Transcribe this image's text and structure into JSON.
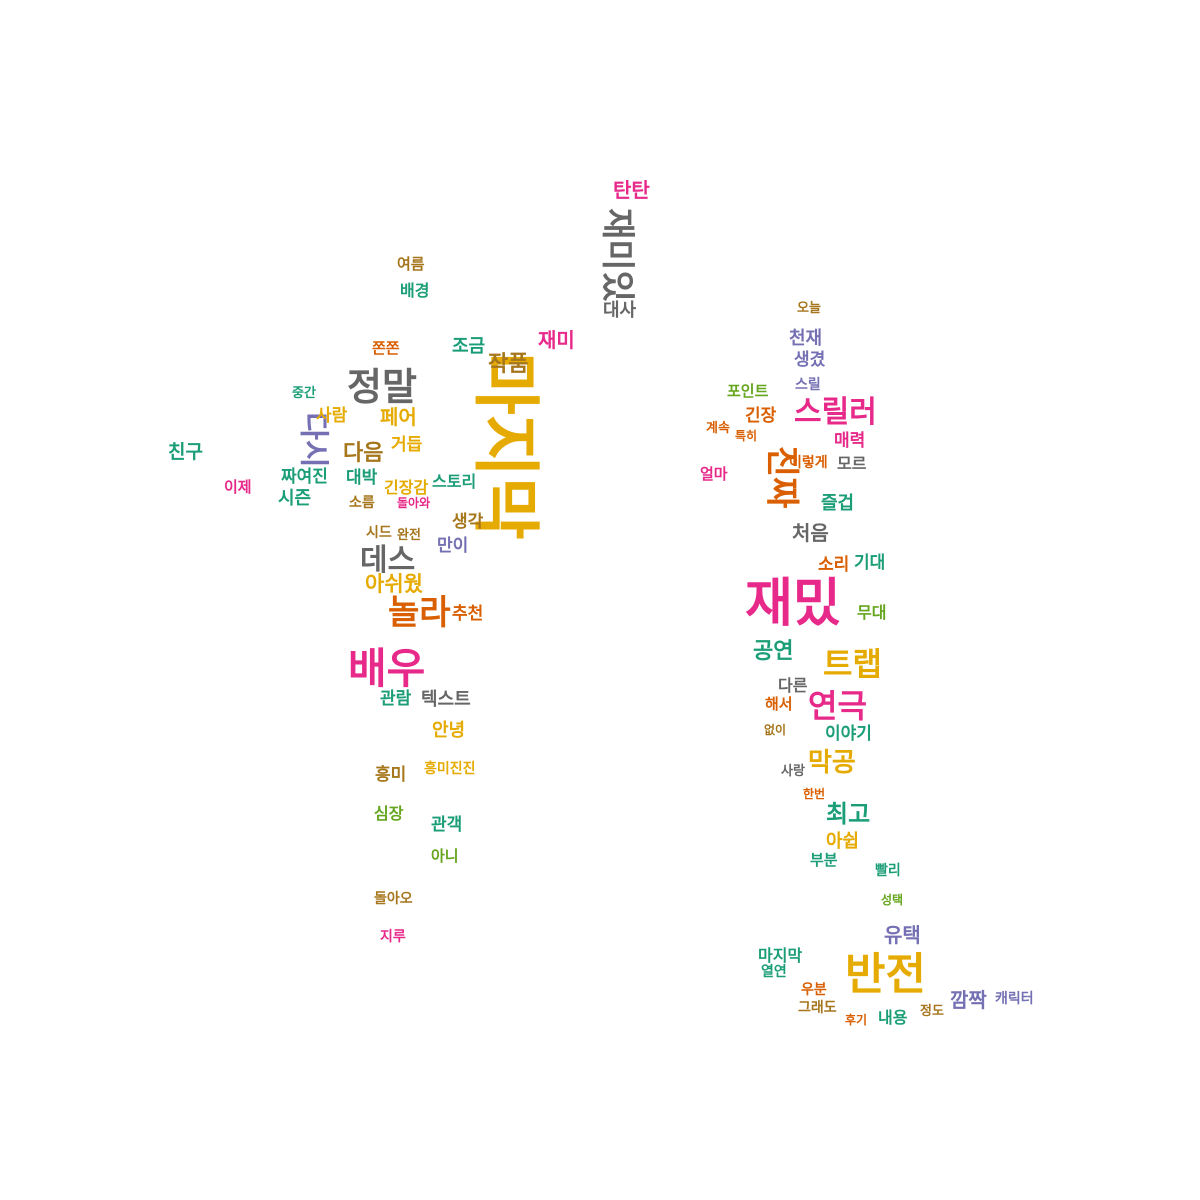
{
  "colors": {
    "teal": "#1b9e77",
    "orange": "#d95f02",
    "purple": "#7570b3",
    "magenta": "#e7298a",
    "green": "#66a61e",
    "gold": "#e6ab02",
    "brown": "#a6761d",
    "gray": "#666666"
  },
  "words": [
    {
      "text": "마지막",
      "color": "gold"
    },
    {
      "text": "정말",
      "color": "gray"
    },
    {
      "text": "재미있",
      "color": "gray"
    },
    {
      "text": "대사",
      "color": "gray"
    },
    {
      "text": "탄탄",
      "color": "magenta"
    },
    {
      "text": "재미",
      "color": "magenta"
    },
    {
      "text": "작품",
      "color": "brown"
    },
    {
      "text": "조금",
      "color": "teal"
    },
    {
      "text": "쫀쫀",
      "color": "orange"
    },
    {
      "text": "배경",
      "color": "teal"
    },
    {
      "text": "여름",
      "color": "brown"
    },
    {
      "text": "다시",
      "color": "purple"
    },
    {
      "text": "사람",
      "color": "gold"
    },
    {
      "text": "페어",
      "color": "gold"
    },
    {
      "text": "중간",
      "color": "teal"
    },
    {
      "text": "친구",
      "color": "teal"
    },
    {
      "text": "이제",
      "color": "magenta"
    },
    {
      "text": "짜여진",
      "color": "teal"
    },
    {
      "text": "시즌",
      "color": "teal"
    },
    {
      "text": "다음",
      "color": "brown"
    },
    {
      "text": "대박",
      "color": "teal"
    },
    {
      "text": "거듭",
      "color": "gold"
    },
    {
      "text": "긴장감",
      "color": "gold"
    },
    {
      "text": "스토리",
      "color": "teal"
    },
    {
      "text": "소름",
      "color": "brown"
    },
    {
      "text": "시드",
      "color": "brown"
    },
    {
      "text": "생각",
      "color": "brown"
    },
    {
      "text": "데스",
      "color": "gray"
    },
    {
      "text": "만이",
      "color": "purple"
    },
    {
      "text": "아쉬웠",
      "color": "gold"
    },
    {
      "text": "놀라",
      "color": "orange"
    },
    {
      "text": "추천",
      "color": "orange"
    },
    {
      "text": "배우",
      "color": "magenta"
    },
    {
      "text": "관람",
      "color": "teal"
    },
    {
      "text": "텍스트",
      "color": "gray"
    },
    {
      "text": "안녕",
      "color": "gold"
    },
    {
      "text": "흥미",
      "color": "brown"
    },
    {
      "text": "흥미진진",
      "color": "gold"
    },
    {
      "text": "심장",
      "color": "green"
    },
    {
      "text": "관객",
      "color": "teal"
    },
    {
      "text": "아니",
      "color": "green"
    },
    {
      "text": "돌아오",
      "color": "brown"
    },
    {
      "text": "지루",
      "color": "magenta"
    },
    {
      "text": "천재",
      "color": "purple"
    },
    {
      "text": "생겼",
      "color": "purple"
    },
    {
      "text": "포인트",
      "color": "green"
    },
    {
      "text": "스릴러",
      "color": "magenta"
    },
    {
      "text": "긴장",
      "color": "orange"
    },
    {
      "text": "매력",
      "color": "magenta"
    },
    {
      "text": "진짜",
      "color": "orange"
    },
    {
      "text": "이렇게",
      "color": "orange"
    },
    {
      "text": "모르",
      "color": "gray"
    },
    {
      "text": "즐겁",
      "color": "teal"
    },
    {
      "text": "처음",
      "color": "gray"
    },
    {
      "text": "재밌",
      "color": "magenta"
    },
    {
      "text": "소리",
      "color": "orange"
    },
    {
      "text": "기대",
      "color": "teal"
    },
    {
      "text": "무대",
      "color": "green"
    },
    {
      "text": "공연",
      "color": "teal"
    },
    {
      "text": "트랩",
      "color": "gold"
    },
    {
      "text": "연극",
      "color": "magenta"
    },
    {
      "text": "다른",
      "color": "gray"
    },
    {
      "text": "해서",
      "color": "orange"
    },
    {
      "text": "이야기",
      "color": "teal"
    },
    {
      "text": "막공",
      "color": "gold"
    },
    {
      "text": "최고",
      "color": "teal"
    },
    {
      "text": "아쉽",
      "color": "gold"
    },
    {
      "text": "부분",
      "color": "teal"
    },
    {
      "text": "빨리",
      "color": "teal"
    },
    {
      "text": "유택",
      "color": "purple"
    },
    {
      "text": "반전",
      "color": "gold"
    },
    {
      "text": "마지막",
      "color": "teal"
    },
    {
      "text": "깜짝",
      "color": "purple"
    },
    {
      "text": "캐릭터",
      "color": "purple"
    },
    {
      "text": "내용",
      "color": "teal"
    },
    {
      "text": "우분",
      "color": "orange"
    },
    {
      "text": "그래도",
      "color": "brown"
    },
    {
      "text": "후기",
      "color": "orange"
    },
    {
      "text": "성택",
      "color": "green"
    },
    {
      "text": "사랑",
      "color": "gray"
    },
    {
      "text": "한번",
      "color": "orange"
    },
    {
      "text": "없이",
      "color": "brown"
    },
    {
      "text": "열연",
      "color": "teal"
    },
    {
      "text": "정도",
      "color": "brown"
    },
    {
      "text": "스릴",
      "color": "purple"
    },
    {
      "text": "오늘",
      "color": "brown"
    },
    {
      "text": "계속",
      "color": "orange"
    },
    {
      "text": "특히",
      "color": "orange"
    },
    {
      "text": "얼마",
      "color": "magenta"
    },
    {
      "text": "완전",
      "color": "brown"
    },
    {
      "text": "돌아와",
      "color": "magenta"
    }
  ]
}
